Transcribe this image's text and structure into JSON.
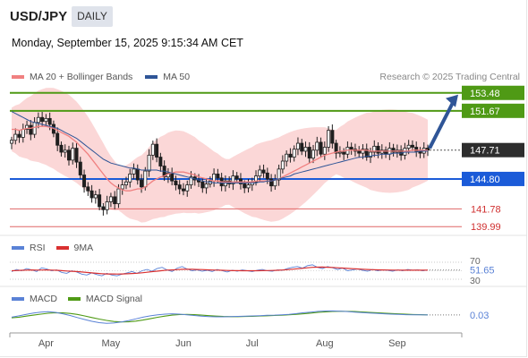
{
  "header": {
    "symbol": "USD/JPY",
    "timeframe": "DAILY",
    "timestamp": "Monday, September 15, 2025 9:15:34 AM CET",
    "credit": "Research © 2025 Trading Central"
  },
  "colors": {
    "candle": "#1f1f1f",
    "band": "#f7b7b7",
    "ma20": "#f08080",
    "ma50": "#2f5597",
    "resistance": "#4f9a15",
    "pivot": "#1b5bd8",
    "support": "#e06666",
    "arrow": "#2f5597",
    "rsi": "#5a82d6",
    "rsi_ma": "#d93030",
    "macd": "#5a82d6",
    "macd_signal": "#4f9a15"
  },
  "chart_data": [
    {
      "type": "candlestick",
      "title": "",
      "legend": [
        "MA 20 + Bollinger Bands",
        "MA 50"
      ],
      "legend_placement": "top-left",
      "x_ticks": [
        "Apr",
        "May",
        "Jun",
        "Jul",
        "Aug",
        "Sep"
      ],
      "ylim": [
        139.2,
        154.0
      ],
      "last_price": 147.71,
      "levels": [
        {
          "label": "153.48",
          "value": 153.48,
          "kind": "resistance"
        },
        {
          "label": "151.67",
          "value": 151.67,
          "kind": "resistance"
        },
        {
          "label": "144.80",
          "value": 144.8,
          "kind": "pivot"
        },
        {
          "label": "141.78",
          "value": 141.78,
          "kind": "support"
        },
        {
          "label": "139.99",
          "value": 139.99,
          "kind": "support"
        }
      ],
      "closes": [
        148.7,
        149.3,
        149.0,
        149.8,
        150.2,
        149.3,
        150.5,
        151.0,
        150.6,
        150.9,
        150.3,
        149.4,
        148.2,
        147.5,
        147.7,
        146.7,
        147.9,
        146.5,
        145.2,
        144.0,
        143.6,
        142.9,
        143.2,
        142.0,
        141.7,
        142.5,
        143.0,
        142.3,
        143.8,
        144.2,
        144.5,
        145.3,
        145.8,
        144.7,
        144.0,
        145.6,
        147.2,
        148.3,
        147.0,
        146.1,
        145.0,
        145.4,
        144.6,
        144.2,
        143.8,
        143.6,
        144.2,
        145.0,
        144.7,
        144.5,
        143.9,
        144.3,
        144.6,
        145.3,
        144.9,
        144.1,
        144.6,
        144.3,
        145.1,
        144.8,
        144.3,
        143.9,
        144.2,
        144.5,
        145.1,
        145.7,
        145.4,
        144.8,
        144.1,
        144.7,
        145.8,
        146.6,
        147.3,
        147.0,
        147.8,
        148.4,
        147.6,
        148.0,
        146.9,
        147.7,
        148.5,
        147.3,
        148.0,
        149.7,
        148.4,
        147.4,
        147.5,
        147.3,
        148.0,
        147.8,
        147.6,
        147.4,
        147.8,
        147.0,
        147.5,
        148.1,
        147.4,
        147.7,
        147.3,
        147.9,
        147.5,
        147.7,
        147.2,
        147.9,
        148.2,
        148.0,
        147.6,
        147.4,
        147.9,
        147.71
      ],
      "ma20": [
        149.8,
        149.8,
        149.7,
        149.8,
        149.9,
        149.9,
        150.0,
        150.1,
        150.1,
        150.1,
        150.0,
        149.9,
        149.7,
        149.5,
        149.3,
        149.1,
        148.8,
        148.5,
        148.1,
        147.7,
        147.3,
        146.8,
        146.3,
        145.8,
        145.3,
        144.8,
        144.4,
        144.1,
        143.9,
        143.7,
        143.6,
        143.6,
        143.7,
        143.8,
        143.8,
        144.0,
        144.3,
        144.6,
        144.8,
        145.0,
        145.1,
        145.3,
        145.4,
        145.5,
        145.5,
        145.5,
        145.4,
        145.3,
        145.2,
        145.0,
        144.9,
        144.8,
        144.7,
        144.6,
        144.6,
        144.5,
        144.5,
        144.5,
        144.5,
        144.5,
        144.5,
        144.5,
        144.5,
        144.5,
        144.6,
        144.6,
        144.6,
        144.6,
        144.6,
        144.7,
        144.8,
        145.0,
        145.2,
        145.4,
        145.6,
        145.8,
        146.0,
        146.2,
        146.4,
        146.6,
        146.8,
        147.0,
        147.2,
        147.3,
        147.4,
        147.5,
        147.6,
        147.6,
        147.7,
        147.7,
        147.7,
        147.7,
        147.7,
        147.7,
        147.6,
        147.6,
        147.6,
        147.6,
        147.6,
        147.6,
        147.6,
        147.6,
        147.6,
        147.6,
        147.6,
        147.7,
        147.7,
        147.7,
        147.7,
        147.7
      ],
      "ma50": [
        151.6,
        151.4,
        151.2,
        151.0,
        150.8,
        150.6,
        150.5,
        150.4,
        150.3,
        150.2,
        150.1,
        150.0,
        149.9,
        149.7,
        149.5,
        149.3,
        149.1,
        148.9,
        148.6,
        148.3,
        148.0,
        147.7,
        147.4,
        147.1,
        146.8,
        146.6,
        146.4,
        146.3,
        146.2,
        146.1,
        146.0,
        145.9,
        145.9,
        145.8,
        145.7,
        145.7,
        145.7,
        145.7,
        145.7,
        145.6,
        145.6,
        145.5,
        145.4,
        145.3,
        145.2,
        145.1,
        145.0,
        144.9,
        144.8,
        144.7,
        144.6,
        144.5,
        144.5,
        144.4,
        144.4,
        144.4,
        144.4,
        144.4,
        144.4,
        144.4,
        144.4,
        144.4,
        144.4,
        144.4,
        144.4,
        144.5,
        144.5,
        144.6,
        144.6,
        144.7,
        144.8,
        144.9,
        145.0,
        145.1,
        145.3,
        145.4,
        145.5,
        145.6,
        145.7,
        145.8,
        145.9,
        146.0,
        146.1,
        146.2,
        146.3,
        146.4,
        146.5,
        146.6,
        146.7,
        146.8,
        146.9,
        147.0,
        147.0,
        147.1,
        147.1,
        147.2,
        147.2,
        147.3,
        147.3,
        147.3,
        147.4,
        147.4,
        147.4,
        147.5,
        147.5,
        147.5,
        147.5,
        147.6,
        147.6,
        147.6
      ]
    },
    {
      "type": "line",
      "title": "",
      "legend": [
        "RSI",
        "9MA"
      ],
      "legend_placement": "top-left",
      "ylim": [
        30,
        70
      ],
      "levels": [
        70,
        30
      ],
      "last_value": 51.65,
      "rsi": [
        48,
        53,
        50,
        55,
        52,
        48,
        57,
        54,
        50,
        52,
        46,
        44,
        50,
        47,
        42,
        40,
        45,
        41,
        38,
        44,
        40,
        38,
        42,
        45,
        48,
        44,
        50,
        53,
        49,
        55,
        58,
        52,
        48,
        56,
        60,
        54,
        50,
        52,
        49,
        51,
        48,
        53,
        50,
        47,
        51,
        49,
        52,
        50,
        48,
        51,
        53,
        50,
        49,
        52,
        51,
        55,
        58,
        60,
        56,
        62,
        64,
        58,
        55,
        60,
        57,
        53,
        56,
        50,
        52,
        54,
        51,
        49,
        53,
        50,
        52,
        51,
        49,
        52,
        50,
        53,
        51,
        52,
        50,
        51.65
      ],
      "ma": [
        50,
        50.5,
        51,
        51.5,
        51.8,
        51.5,
        51.6,
        51.8,
        51.4,
        51,
        50.2,
        49.3,
        48.7,
        48,
        47,
        46,
        45,
        44,
        43,
        42.5,
        42.4,
        42.3,
        42.4,
        42.8,
        43.5,
        44.2,
        45.2,
        46.5,
        47.8,
        49,
        50.3,
        51.5,
        52,
        52.6,
        53.4,
        53.6,
        53.3,
        53,
        52.7,
        52.2,
        51.7,
        51.4,
        51,
        50.6,
        50.3,
        50.2,
        50.1,
        50,
        49.9,
        50,
        50.2,
        50.4,
        50.6,
        51.1,
        51.7,
        52.5,
        53.5,
        54.6,
        55.7,
        57,
        58,
        58.5,
        58.6,
        58.3,
        57.7,
        57,
        56.3,
        55.5,
        54.8,
        54.2,
        53.6,
        53,
        52.5,
        52.1,
        51.8,
        51.6,
        51.5,
        51.4,
        51.3,
        51.3,
        51.3,
        51.3,
        51.3,
        51.4
      ]
    },
    {
      "type": "line",
      "title": "",
      "legend": [
        "MACD",
        "MACD Signal"
      ],
      "legend_placement": "top-left",
      "last_value": 0.03,
      "macd": [
        -0.3,
        -0.1,
        0.1,
        0.3,
        0.45,
        0.5,
        0.4,
        0.2,
        -0.05,
        -0.35,
        -0.65,
        -0.9,
        -1.1,
        -1.2,
        -1.15,
        -1.0,
        -0.8,
        -0.55,
        -0.3,
        -0.1,
        0.05,
        0.15,
        0.2,
        0.15,
        0.05,
        -0.05,
        -0.15,
        -0.22,
        -0.25,
        -0.25,
        -0.22,
        -0.18,
        -0.15,
        -0.12,
        -0.08,
        -0.03,
        0.0,
        0.05,
        0.12,
        0.22,
        0.35,
        0.45,
        0.55,
        0.6,
        0.62,
        0.58,
        0.52,
        0.45,
        0.38,
        0.32,
        0.26,
        0.2,
        0.15,
        0.1,
        0.07,
        0.05,
        0.04,
        0.03
      ],
      "signal": [
        -0.4,
        -0.3,
        -0.15,
        0.0,
        0.15,
        0.28,
        0.35,
        0.33,
        0.25,
        0.1,
        -0.12,
        -0.35,
        -0.58,
        -0.78,
        -0.93,
        -1.0,
        -0.98,
        -0.88,
        -0.72,
        -0.52,
        -0.32,
        -0.15,
        0.0,
        0.08,
        0.1,
        0.06,
        0.0,
        -0.08,
        -0.15,
        -0.2,
        -0.22,
        -0.22,
        -0.2,
        -0.17,
        -0.13,
        -0.09,
        -0.05,
        -0.01,
        0.05,
        0.12,
        0.2,
        0.3,
        0.4,
        0.48,
        0.54,
        0.56,
        0.55,
        0.52,
        0.47,
        0.41,
        0.35,
        0.29,
        0.23,
        0.18,
        0.13,
        0.09,
        0.06,
        0.04
      ]
    }
  ]
}
